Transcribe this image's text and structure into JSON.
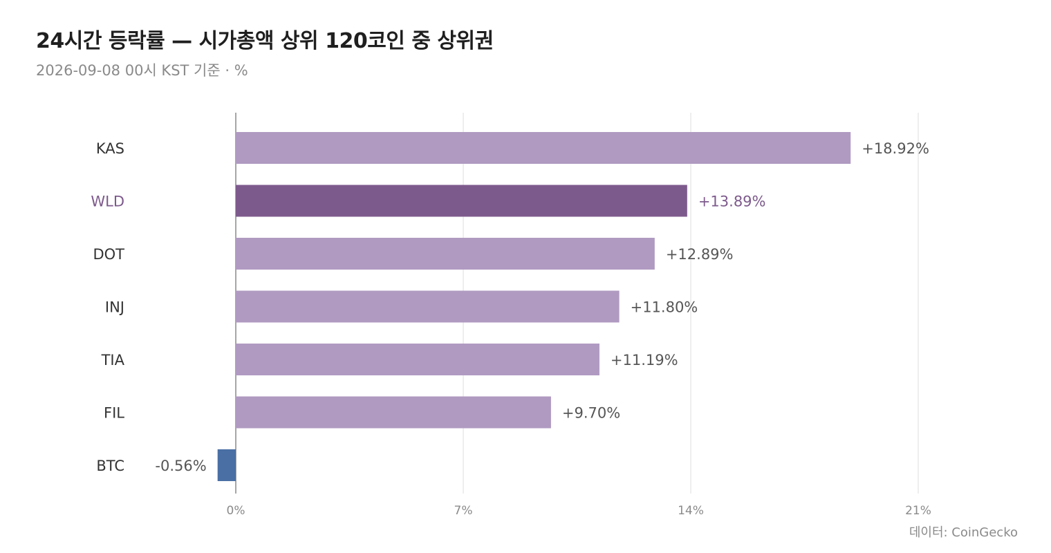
{
  "chart_data": {
    "type": "bar",
    "orientation": "horizontal",
    "title": "24시간 등락률 — 시가총액 상위 120코인 중 상위권",
    "subtitle": "2026-09-08 00시 KST 기준 · %",
    "source": "데이터: CoinGecko",
    "categories": [
      "KAS",
      "WLD",
      "DOT",
      "INJ",
      "TIA",
      "FIL",
      "BTC"
    ],
    "values": [
      18.92,
      13.89,
      12.89,
      11.8,
      11.19,
      9.7,
      -0.56
    ],
    "value_labels": [
      "+18.92%",
      "+13.89%",
      "+12.89%",
      "+11.80%",
      "+11.19%",
      "+9.70%",
      "-0.56%"
    ],
    "highlight": "WLD",
    "xlim": [
      -0.56,
      21
    ],
    "xticks": [
      0,
      7,
      14,
      21
    ],
    "xtick_labels": [
      "0%",
      "7%",
      "14%",
      "21%"
    ],
    "grid": "vertical",
    "legend": "none",
    "colors": {
      "positive": "#b09ac1",
      "highlight": "#7d5a8c",
      "negative": "#4a6fa5",
      "grid": "#e3e3e3",
      "zero_line": "#888888"
    }
  }
}
